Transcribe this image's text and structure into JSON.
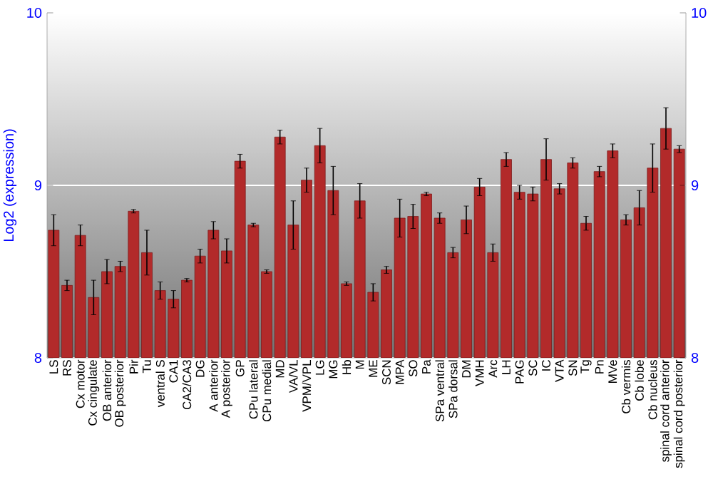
{
  "chart_data": {
    "type": "bar",
    "ylabel": "Log2 (expression)",
    "categories": [
      "LS",
      "RS",
      "Cx motor",
      "Cx cingulate",
      "OB anterior",
      "OB posterior",
      "Pir",
      "Tu",
      "ventral S",
      "CA1",
      "CA2/CA3",
      "DG",
      "A anterior",
      "A posterior",
      "GP",
      "CPu lateral",
      "CPu medial",
      "MD",
      "VA/VL",
      "VPM/VPL",
      "LG",
      "MG",
      "Hb",
      "M",
      "ME",
      "SCN",
      "MPA",
      "SO",
      "Pa",
      "SPa ventral",
      "SPa dorsal",
      "DM",
      "VMH",
      "Arc",
      "LH",
      "PAG",
      "SC",
      "IC",
      "VTA",
      "SN",
      "Tg",
      "Pn",
      "MVe",
      "Cb vermis",
      "Cb lobe",
      "Cb nucleus",
      "spinal cord anterior",
      "spinal cord posterior"
    ],
    "values": [
      8.74,
      8.42,
      8.71,
      8.35,
      8.5,
      8.53,
      8.85,
      8.61,
      8.39,
      8.34,
      8.45,
      8.59,
      8.74,
      8.62,
      9.14,
      8.77,
      8.5,
      9.28,
      8.77,
      9.03,
      9.23,
      8.97,
      8.43,
      8.91,
      8.38,
      8.51,
      8.81,
      8.82,
      8.95,
      8.81,
      8.61,
      8.8,
      8.99,
      8.61,
      9.15,
      8.96,
      8.95,
      9.15,
      8.98,
      9.13,
      8.78,
      9.08,
      9.2,
      8.8,
      8.87,
      9.1,
      9.33,
      9.21
    ],
    "errors": [
      0.09,
      0.03,
      0.06,
      0.1,
      0.07,
      0.03,
      0.01,
      0.13,
      0.05,
      0.05,
      0.01,
      0.04,
      0.05,
      0.07,
      0.04,
      0.01,
      0.01,
      0.04,
      0.14,
      0.07,
      0.1,
      0.14,
      0.01,
      0.1,
      0.05,
      0.02,
      0.11,
      0.07,
      0.01,
      0.03,
      0.03,
      0.08,
      0.05,
      0.05,
      0.04,
      0.04,
      0.04,
      0.12,
      0.03,
      0.03,
      0.04,
      0.03,
      0.04,
      0.03,
      0.1,
      0.14,
      0.12,
      0.02
    ],
    "color": "#b22a2a",
    "ylim": [
      8,
      10
    ],
    "yticks": [
      8,
      9,
      10
    ],
    "y2lim": [
      8,
      10
    ],
    "y2ticks": [
      8,
      9,
      10
    ],
    "grid": "y"
  }
}
